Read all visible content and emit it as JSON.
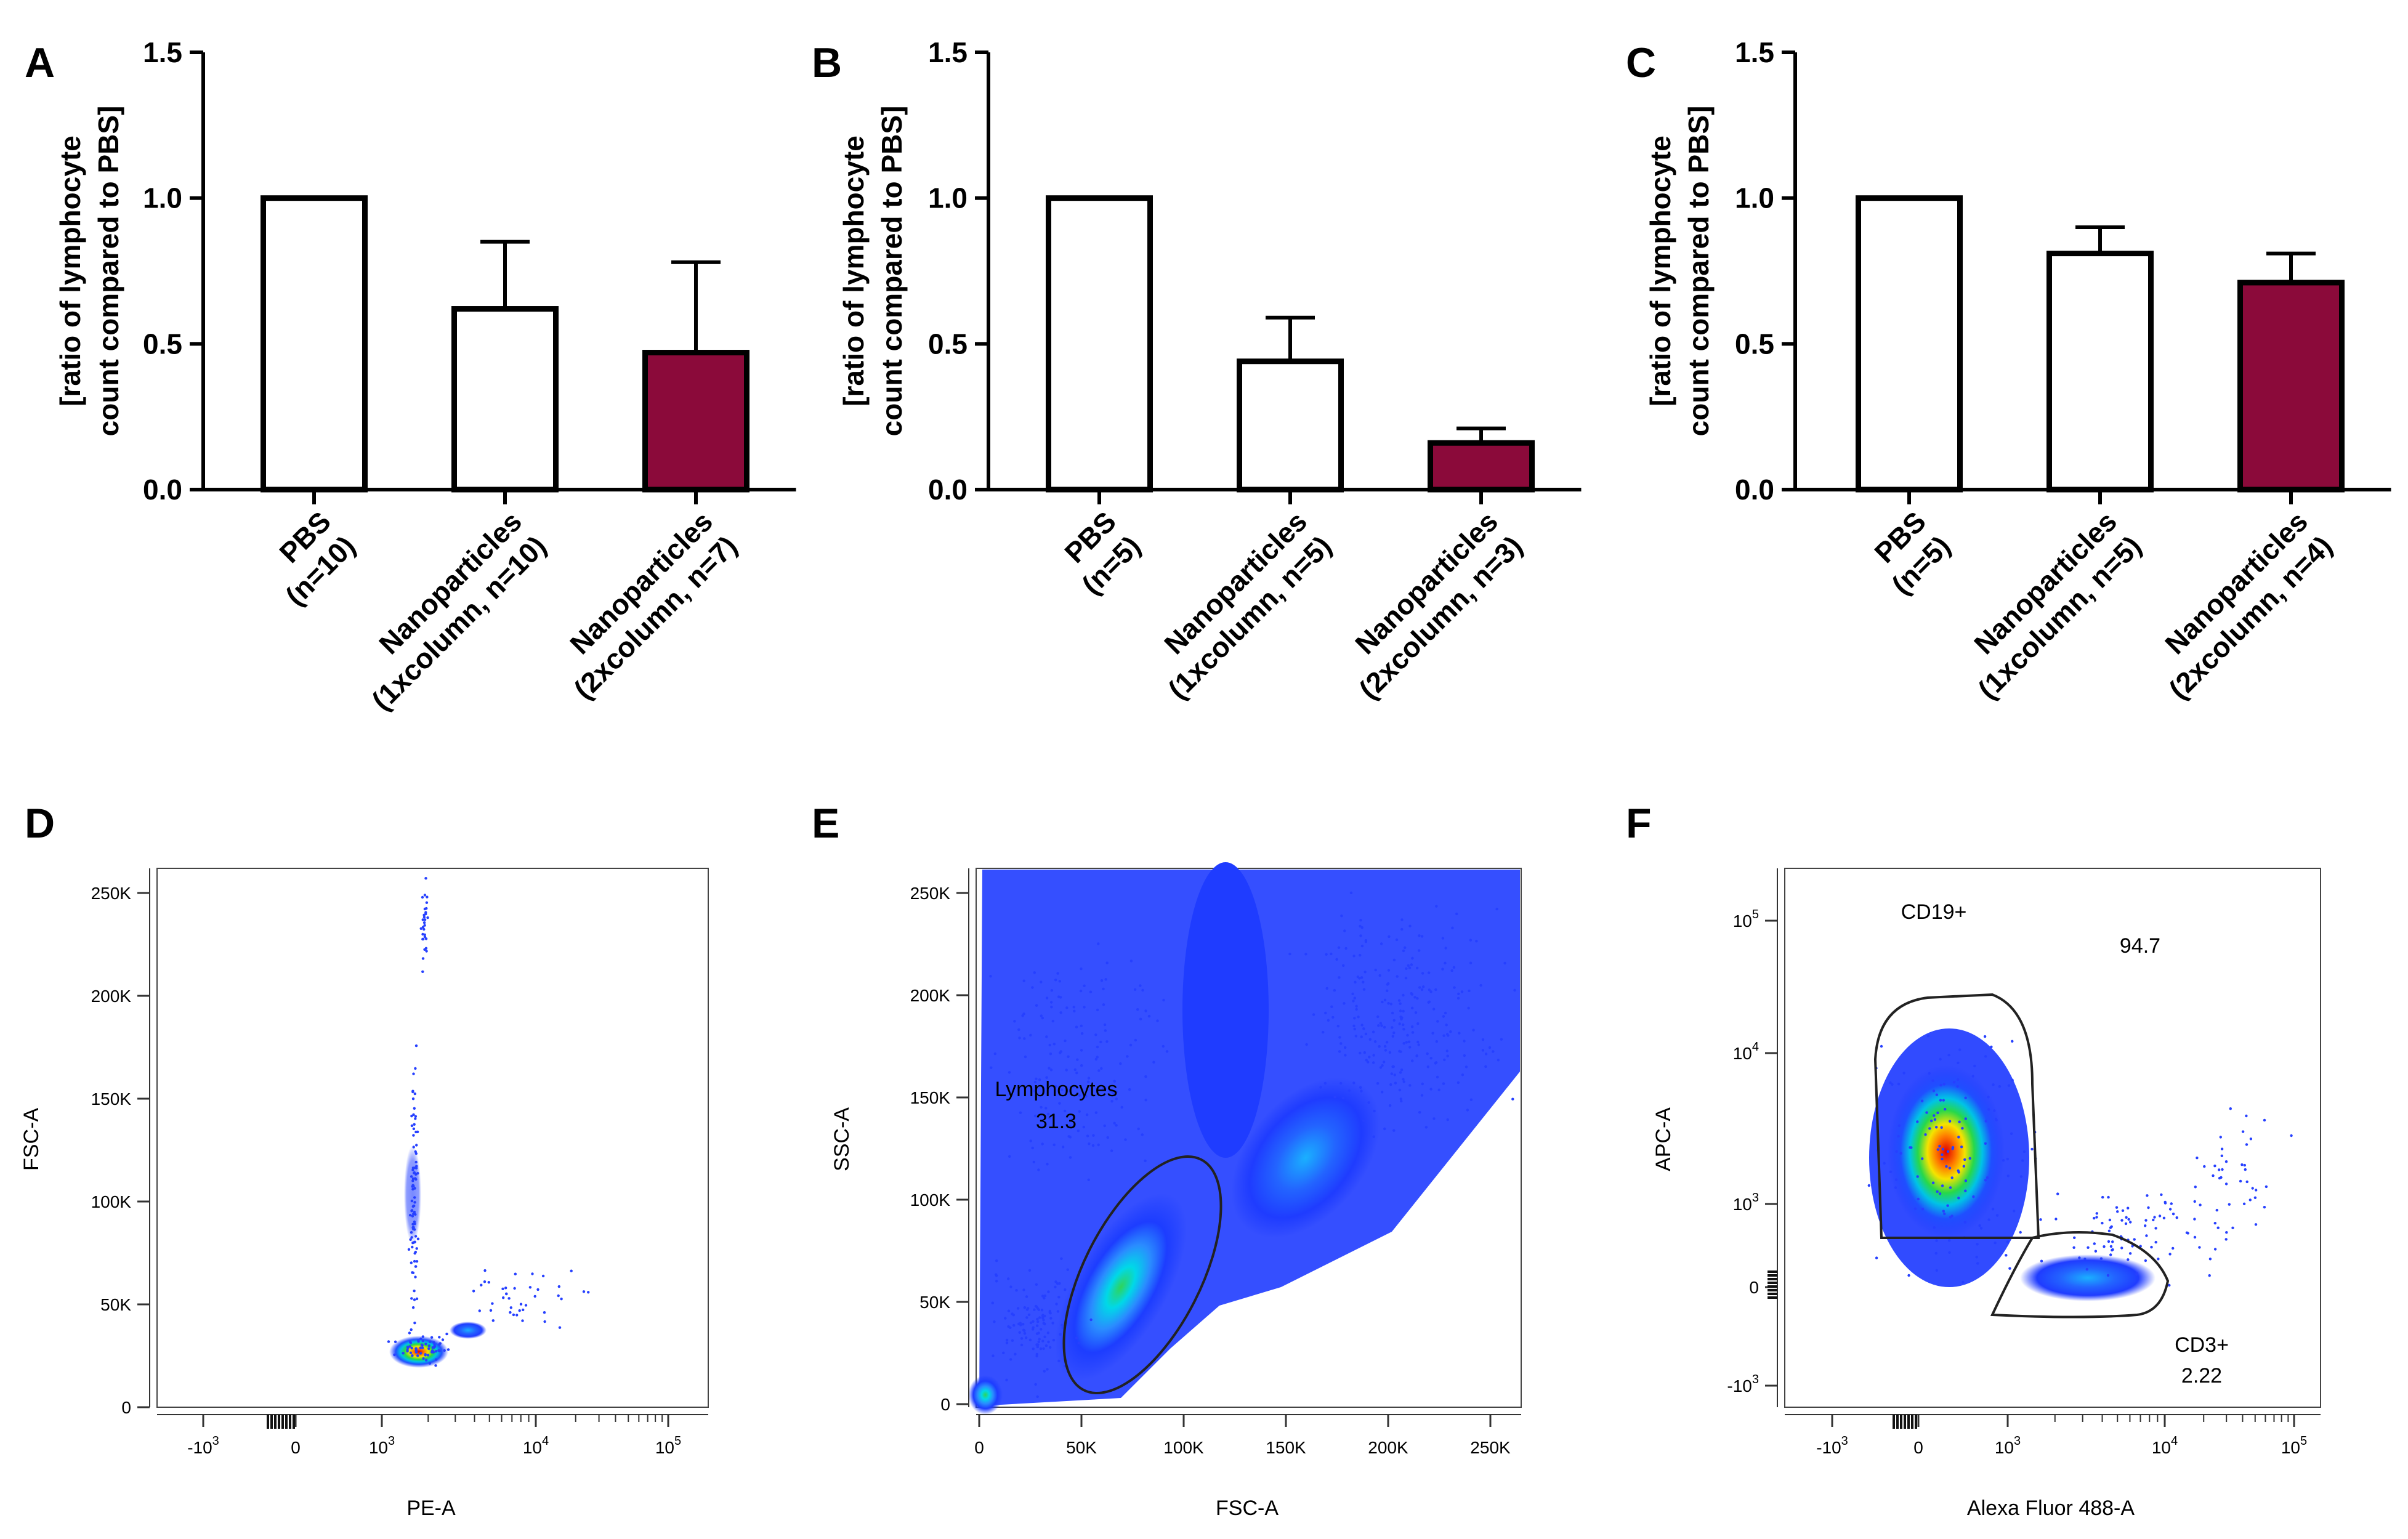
{
  "figure": {
    "panel_labels": [
      "A",
      "B",
      "C",
      "D",
      "E",
      "F"
    ],
    "colors": {
      "bar_fill_open": "#ffffff",
      "bar_fill_dark": "#8b0a3a",
      "stroke": "#000000"
    }
  },
  "chart_data": [
    {
      "panel": "A",
      "type": "bar",
      "ylabel_line1": "[ratio of lymphocyte",
      "ylabel_line2": "count compared to PBS]",
      "ylim": [
        0,
        1.5
      ],
      "yticks": [
        "0.0",
        "0.5",
        "1.0",
        "1.5"
      ],
      "categories": [
        {
          "line1": "PBS",
          "line2": "(n=10)"
        },
        {
          "line1": "Nanoparticles",
          "line2": "(1xcolumn, n=10)"
        },
        {
          "line1": "Nanoparticles",
          "line2": "(2xcolumn, n=7)"
        }
      ],
      "values": [
        1.0,
        0.62,
        0.47
      ],
      "errors": [
        0,
        0.23,
        0.31
      ],
      "fills": [
        "#ffffff",
        "#ffffff",
        "#8b0a3a"
      ]
    },
    {
      "panel": "B",
      "type": "bar",
      "ylabel_line1": "[ratio of lymphocyte",
      "ylabel_line2": "count compared to PBS]",
      "ylim": [
        0,
        1.5
      ],
      "yticks": [
        "0.0",
        "0.5",
        "1.0",
        "1.5"
      ],
      "categories": [
        {
          "line1": "PBS",
          "line2": "(n=5)"
        },
        {
          "line1": "Nanoparticles",
          "line2": "(1xcolumn, n=5)"
        },
        {
          "line1": "Nanoparticles",
          "line2": "(2xcolumn, n=3)"
        }
      ],
      "values": [
        1.0,
        0.44,
        0.16
      ],
      "errors": [
        0,
        0.15,
        0.05
      ],
      "fills": [
        "#ffffff",
        "#ffffff",
        "#8b0a3a"
      ]
    },
    {
      "panel": "C",
      "type": "bar",
      "ylabel_line1": "[ratio of lymphocyte",
      "ylabel_line2": "count compared to PBS]",
      "ylim": [
        0,
        1.5
      ],
      "yticks": [
        "0.0",
        "0.5",
        "1.0",
        "1.5"
      ],
      "categories": [
        {
          "line1": "PBS",
          "line2": "(n=5)"
        },
        {
          "line1": "Nanoparticles",
          "line2": "(1xcolumn, n=5)"
        },
        {
          "line1": "Nanoparticles",
          "line2": "(2xcolumn, n=4)"
        }
      ],
      "values": [
        1.0,
        0.81,
        0.71
      ],
      "errors": [
        0,
        0.09,
        0.1
      ],
      "fills": [
        "#ffffff",
        "#ffffff",
        "#8b0a3a"
      ]
    },
    {
      "panel": "D",
      "type": "scatter",
      "xlabel": "PE-A",
      "ylabel": "FSC-A",
      "x_scale": "biexponential",
      "xticks": [
        "-10³",
        "0",
        "10³",
        "10⁴",
        "10⁵"
      ],
      "yticks": [
        "0",
        "50K",
        "100K",
        "150K",
        "200K",
        "250K"
      ],
      "ylim": [
        0,
        262144
      ]
    },
    {
      "panel": "E",
      "type": "scatter",
      "xlabel": "FSC-A",
      "ylabel": "SSC-A",
      "xticks": [
        "0",
        "50K",
        "100K",
        "150K",
        "200K",
        "250K"
      ],
      "yticks": [
        "0",
        "50K",
        "100K",
        "150K",
        "200K",
        "250K"
      ],
      "xlim": [
        0,
        262144
      ],
      "ylim": [
        0,
        262144
      ],
      "gates": [
        {
          "name": "Lymphocytes",
          "percent": "31.3"
        }
      ]
    },
    {
      "panel": "F",
      "type": "scatter",
      "xlabel": "Alexa Fluor 488-A",
      "ylabel": "APC-A",
      "x_scale": "biexponential",
      "y_scale": "biexponential",
      "xticks": [
        "-10³",
        "0",
        "10³",
        "10⁴",
        "10⁵"
      ],
      "yticks": [
        "-10³",
        "0",
        "10³",
        "10⁴",
        "10⁵"
      ],
      "gates": [
        {
          "name": "CD19+",
          "percent": "94.7"
        },
        {
          "name": "CD3+",
          "percent": "2.22"
        }
      ]
    }
  ]
}
